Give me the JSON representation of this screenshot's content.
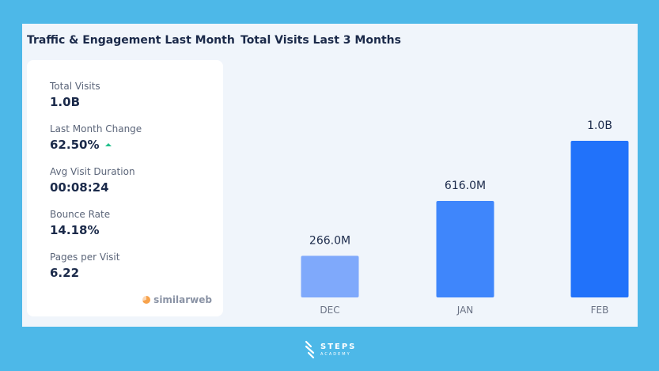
{
  "left": {
    "title": "Traffic & Engagement Last Month",
    "metrics": [
      {
        "label": "Total Visits",
        "value": "1.0B"
      },
      {
        "label": "Last Month Change",
        "value": "62.50%",
        "trend": "up"
      },
      {
        "label": "Avg Visit Duration",
        "value": "00:08:24"
      },
      {
        "label": "Bounce Rate",
        "value": "14.18%"
      },
      {
        "label": "Pages per Visit",
        "value": "6.22"
      }
    ],
    "source_logo": "similarweb"
  },
  "right": {
    "title": "Total Visits Last 3 Months"
  },
  "chart_data": {
    "type": "bar",
    "categories": [
      "DEC",
      "JAN",
      "FEB"
    ],
    "values": [
      266000000,
      616000000,
      1000000000
    ],
    "data_labels": [
      "266.0M",
      "616.0M",
      "1.0B"
    ],
    "colors": [
      "#7fa9fb",
      "#3f86fb",
      "#2172fa"
    ],
    "ylim": [
      0,
      1000000000
    ]
  },
  "branding": {
    "name": "STEPS",
    "sub": "ACADEMY"
  },
  "colors": {
    "background": "#4db8e8",
    "panel": "#f0f5fb",
    "text_dark": "#1b2a4a",
    "trend_up": "#1fbf8a"
  }
}
